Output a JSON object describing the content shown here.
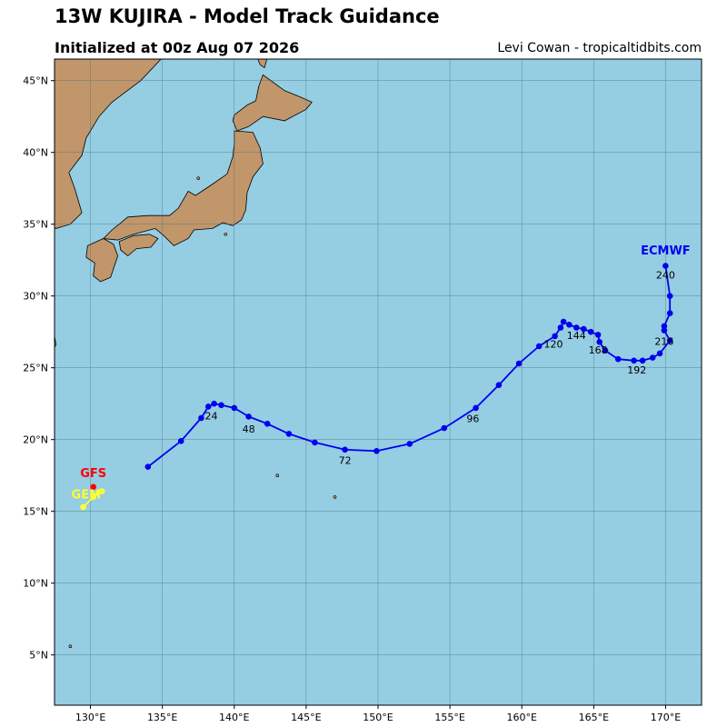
{
  "header": {
    "title": "13W KUJIRA - Model Track Guidance",
    "subtitle": "Initialized at 00z Aug 07 2026",
    "credit": "Levi Cowan - tropicaltidbits.com"
  },
  "colors": {
    "ocean": "#95cde3",
    "land": "#c0966a",
    "grid": "#4a6a78",
    "ecmwf": "#0000ee",
    "gfs": "#ff0000",
    "gem": "#ffff33"
  },
  "map": {
    "lon_range": [
      127.5,
      172.5
    ],
    "lat_range": [
      1.5,
      46.5
    ],
    "lon_ticks": [
      130,
      135,
      140,
      145,
      150,
      155,
      160,
      165,
      170
    ],
    "lat_ticks": [
      5,
      10,
      15,
      20,
      25,
      30,
      35,
      40,
      45
    ],
    "lon_tick_labels": [
      "130°E",
      "135°E",
      "140°E",
      "145°E",
      "150°E",
      "155°E",
      "160°E",
      "165°E",
      "170°E"
    ],
    "lat_tick_labels": [
      "5°N",
      "10°N",
      "15°N",
      "20°N",
      "25°N",
      "30°N",
      "35°N",
      "40°N",
      "45°N"
    ]
  },
  "chart_data": {
    "type": "line",
    "x_label": "longitude (°E)",
    "y_label": "latitude (°N)",
    "series": [
      {
        "name": "ECMWF",
        "color": "#0000ee",
        "points": [
          [
            134.0,
            18.1
          ],
          [
            136.3,
            19.9
          ],
          [
            137.7,
            21.5
          ],
          [
            138.2,
            22.3
          ],
          [
            138.6,
            22.5
          ],
          [
            139.1,
            22.4
          ],
          [
            140.0,
            22.2
          ],
          [
            141.0,
            21.6
          ],
          [
            142.3,
            21.1
          ],
          [
            143.8,
            20.4
          ],
          [
            145.6,
            19.8
          ],
          [
            147.7,
            19.3
          ],
          [
            149.9,
            19.2
          ],
          [
            152.2,
            19.7
          ],
          [
            154.6,
            20.8
          ],
          [
            156.8,
            22.2
          ],
          [
            158.4,
            23.8
          ],
          [
            159.8,
            25.3
          ],
          [
            161.2,
            26.5
          ],
          [
            162.3,
            27.2
          ],
          [
            162.7,
            27.8
          ],
          [
            162.9,
            28.2
          ],
          [
            163.3,
            28.0
          ],
          [
            163.8,
            27.8
          ],
          [
            164.3,
            27.7
          ],
          [
            164.8,
            27.5
          ],
          [
            165.3,
            27.3
          ],
          [
            165.4,
            26.8
          ],
          [
            165.8,
            26.2
          ],
          [
            166.7,
            25.6
          ],
          [
            167.8,
            25.5
          ],
          [
            168.4,
            25.5
          ],
          [
            169.1,
            25.7
          ],
          [
            169.6,
            26.0
          ],
          [
            170.3,
            26.9
          ],
          [
            169.9,
            27.6
          ],
          [
            169.9,
            27.9
          ],
          [
            170.3,
            28.8
          ],
          [
            170.3,
            30.0
          ],
          [
            170.0,
            32.1
          ]
        ],
        "hour_labels": [
          {
            "text": "24",
            "lon": 138.4,
            "lat": 21.4
          },
          {
            "text": "48",
            "lon": 141.0,
            "lat": 20.5
          },
          {
            "text": "72",
            "lon": 147.7,
            "lat": 18.3
          },
          {
            "text": "96",
            "lon": 156.6,
            "lat": 21.2
          },
          {
            "text": "120",
            "lon": 162.2,
            "lat": 26.4
          },
          {
            "text": "144",
            "lon": 163.8,
            "lat": 27.0
          },
          {
            "text": "168",
            "lon": 165.3,
            "lat": 26.0
          },
          {
            "text": "192",
            "lon": 168.0,
            "lat": 24.6
          },
          {
            "text": "216",
            "lon": 169.9,
            "lat": 26.6
          },
          {
            "text": "240",
            "lon": 170.0,
            "lat": 31.2
          }
        ],
        "label": {
          "text": "ECMWF",
          "lon": 170.0,
          "lat": 32.9
        }
      },
      {
        "name": "GFS",
        "color": "#ff0000",
        "points": [
          [
            130.2,
            16.7
          ]
        ],
        "label": {
          "text": "GFS",
          "lon": 130.2,
          "lat": 17.4
        }
      },
      {
        "name": "GEM",
        "color": "#ffff33",
        "points": [
          [
            129.5,
            15.3
          ],
          [
            130.2,
            16.0
          ],
          [
            130.8,
            16.4
          ]
        ],
        "label": {
          "text": "GEM",
          "lon": 129.7,
          "lat": 15.9
        }
      }
    ]
  }
}
